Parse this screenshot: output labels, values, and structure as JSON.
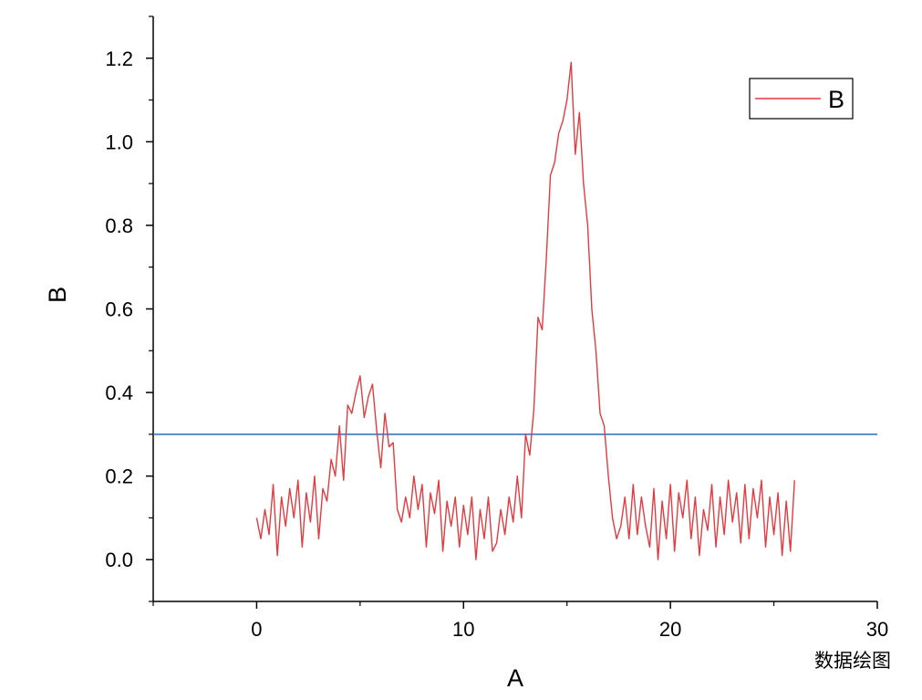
{
  "chart_data": {
    "type": "line",
    "x_label": "A",
    "y_label": "B",
    "watermark": "数据绘图",
    "xlim": [
      -5,
      30
    ],
    "xticks": [
      0,
      10,
      20,
      30
    ],
    "ylim": [
      -0.1,
      1.3
    ],
    "yticks": [
      {
        "value": 0,
        "label": "0.0"
      },
      0.2,
      0.4,
      0.6,
      0.8,
      {
        "value": 1,
        "label": "1.0"
      },
      1.2
    ],
    "legend": "top-right",
    "hline": {
      "value": 0.3,
      "color": "#2a6db5"
    },
    "x": [
      0,
      0.2,
      0.4,
      0.6,
      0.8,
      1,
      1.2,
      1.4,
      1.6,
      1.8,
      2,
      2.2,
      2.4,
      2.6,
      2.8,
      3,
      3.2,
      3.4,
      3.6,
      3.8,
      4,
      4.2,
      4.4,
      4.6,
      4.8,
      5,
      5.2,
      5.4,
      5.6,
      5.8,
      6,
      6.2,
      6.4,
      6.6,
      6.8,
      7,
      7.2,
      7.4,
      7.6,
      7.8,
      8,
      8.2,
      8.4,
      8.6,
      8.8,
      9,
      9.2,
      9.4,
      9.6,
      9.8,
      10,
      10.2,
      10.4,
      10.6,
      10.8,
      11,
      11.2,
      11.4,
      11.6,
      11.8,
      12,
      12.2,
      12.4,
      12.6,
      12.8,
      13,
      13.2,
      13.4,
      13.6,
      13.8,
      14,
      14.2,
      14.4,
      14.6,
      14.8,
      15,
      15.2,
      15.4,
      15.6,
      15.8,
      16,
      16.2,
      16.4,
      16.6,
      16.8,
      17,
      17.2,
      17.4,
      17.6,
      17.8,
      18,
      18.2,
      18.4,
      18.6,
      18.8,
      19,
      19.2,
      19.4,
      19.6,
      19.8,
      20,
      20.2,
      20.4,
      20.6,
      20.8,
      21,
      21.2,
      21.4,
      21.6,
      21.8,
      22,
      22.2,
      22.4,
      22.6,
      22.8,
      23,
      23.2,
      23.4,
      23.6,
      23.8,
      24,
      24.2,
      24.4,
      24.6,
      24.8,
      25,
      25.2,
      25.4,
      25.6,
      25.8,
      26
    ],
    "series": [
      {
        "name": "B",
        "color": "#e23b40",
        "values": [
          0.1,
          0.05,
          0.12,
          0.06,
          0.18,
          0.01,
          0.15,
          0.08,
          0.17,
          0.1,
          0.19,
          0.03,
          0.16,
          0.09,
          0.2,
          0.05,
          0.17,
          0.14,
          0.24,
          0.2,
          0.32,
          0.19,
          0.37,
          0.35,
          0.4,
          0.44,
          0.34,
          0.39,
          0.42,
          0.31,
          0.22,
          0.35,
          0.27,
          0.28,
          0.12,
          0.09,
          0.15,
          0.1,
          0.2,
          0.12,
          0.18,
          0.03,
          0.16,
          0.11,
          0.19,
          0.02,
          0.14,
          0.08,
          0.15,
          0.03,
          0.13,
          0.06,
          0.15,
          0.0,
          0.12,
          0.05,
          0.15,
          0.02,
          0.04,
          0.12,
          0.06,
          0.15,
          0.09,
          0.2,
          0.1,
          0.3,
          0.25,
          0.36,
          0.58,
          0.55,
          0.72,
          0.92,
          0.95,
          1.02,
          1.05,
          1.1,
          1.19,
          0.97,
          1.07,
          0.9,
          0.8,
          0.6,
          0.5,
          0.35,
          0.32,
          0.2,
          0.1,
          0.05,
          0.08,
          0.15,
          0.05,
          0.18,
          0.06,
          0.15,
          0.08,
          0.03,
          0.17,
          0.0,
          0.14,
          0.05,
          0.18,
          0.02,
          0.16,
          0.1,
          0.19,
          0.05,
          0.15,
          0.01,
          0.12,
          0.07,
          0.18,
          0.03,
          0.15,
          0.06,
          0.19,
          0.09,
          0.16,
          0.04,
          0.18,
          0.05,
          0.17,
          0.1,
          0.19,
          0.03,
          0.15,
          0.06,
          0.16,
          0.01,
          0.14,
          0.02,
          0.19
        ]
      }
    ]
  }
}
